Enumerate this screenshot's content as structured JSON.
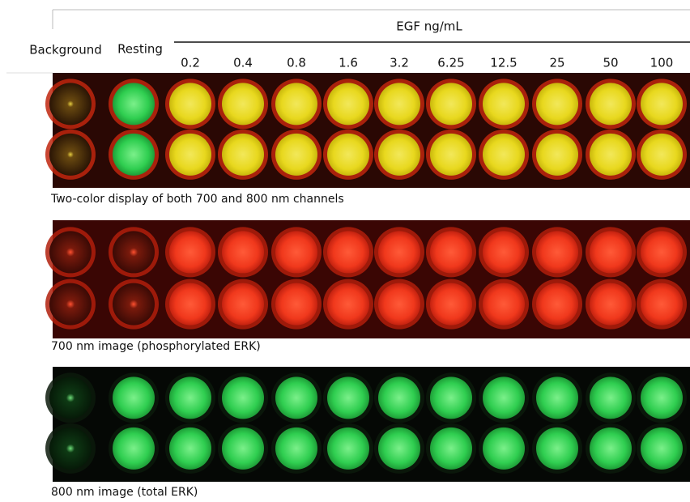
{
  "header": {
    "background_label": "Background",
    "resting_label": "Resting",
    "egf_label": "EGF ng/mL",
    "concentrations": [
      "0.2",
      "0.4",
      "0.8",
      "1.6",
      "3.2",
      "6.25",
      "12.5",
      "25",
      "50",
      "100"
    ]
  },
  "panels": [
    {
      "caption": "Two-color display of both 700 and 800 nm channels"
    },
    {
      "caption": "700 nm image (phosphorylated ERK)"
    },
    {
      "caption": "800 nm image (total ERK)"
    }
  ]
}
